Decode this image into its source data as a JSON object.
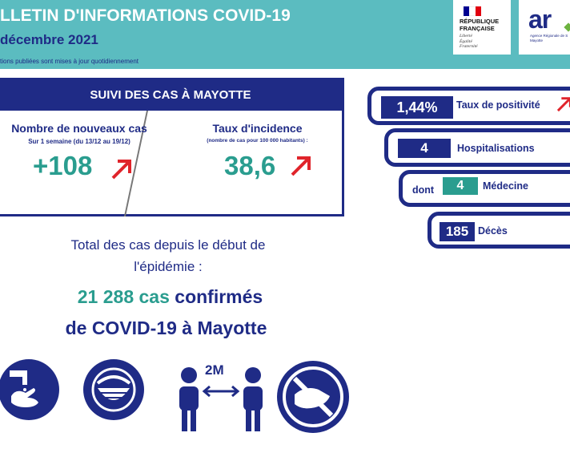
{
  "header": {
    "title": "LLETIN D'INFORMATIONS COVID-19",
    "date": "décembre 2021",
    "note": "tions publiées sont mises à jour quotidiennement",
    "logo_rf": {
      "name": "RÉPUBLIQUE\nFRANÇAISE",
      "motto": "Liberté\nÉgalité\nFraternité",
      "flag_colors": [
        "#000091",
        "#ffffff",
        "#e1000f"
      ]
    },
    "logo_ars": {
      "name": "ar",
      "subtitle": "Agence Régionale de S\nMayotte"
    }
  },
  "cases": {
    "title": "SUIVI DES CAS À MAYOTTE",
    "new_cases": {
      "label": "Nombre de nouveaux cas",
      "sub": "Sur 1 semaine (du 13/12 au 19/12)",
      "value": "+108",
      "trend": "up-arrow"
    },
    "incidence": {
      "label": "Taux d'incidence",
      "sub": "(nombre de cas pour 100 000 habitants) :",
      "value": "38,6",
      "trend": "up-arrow"
    }
  },
  "total": {
    "line1": "Total des cas depuis le début de",
    "line2": "l'épidémie :",
    "count": "21 288 cas",
    "confirmed": "confirmés",
    "line4": "de COVID-19 à Mayotte"
  },
  "indicators": {
    "positivity": {
      "value": "1,44%",
      "label": "Taux de positivité",
      "trend": "up-arrow"
    },
    "hospital": {
      "value": "4",
      "label": "Hospitalisations"
    },
    "medicine": {
      "prefix": "dont",
      "value": "4",
      "label": "Médecine"
    },
    "deaths": {
      "value": "185",
      "label": "Décès"
    }
  },
  "icons": {
    "distance_label": "2M",
    "items": [
      "handwashing-icon",
      "mask-icon",
      "distance-icon",
      "no-handshake-icon"
    ]
  },
  "colors": {
    "navy": "#1f2b86",
    "teal": "#2a9d8f",
    "header_bg": "#5bbcc0",
    "arrow_red": "#e0242b"
  }
}
